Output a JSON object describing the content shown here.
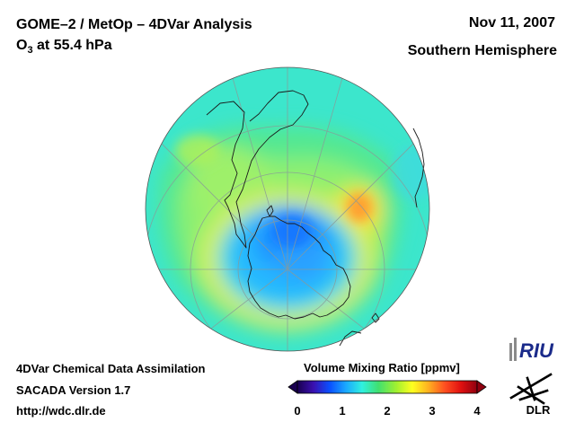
{
  "header": {
    "title": "GOME–2 / MetOp – 4DVar Analysis",
    "subtitle_prefix": "O",
    "subtitle_sub": "3",
    "subtitle_suffix": " at 55.4 hPa",
    "date": "Nov 11, 2007",
    "hemisphere": "Southern Hemisphere"
  },
  "footer": {
    "line1": "4DVar Chemical Data Assimilation",
    "line2": "SACADA Version 1.7",
    "line3": "http://wdc.dlr.de"
  },
  "colorbar": {
    "title": "Volume Mixing Ratio [ppmv]",
    "ticks": [
      "0",
      "1",
      "2",
      "3",
      "4"
    ],
    "range": [
      0,
      4
    ],
    "colors": [
      "#1a0050",
      "#3a10b0",
      "#0a50ff",
      "#1aa8ff",
      "#30f0e0",
      "#40e070",
      "#a0f030",
      "#ffff20",
      "#ffb020",
      "#ff5020",
      "#e01010",
      "#900010"
    ]
  },
  "map": {
    "projection": "polar-orthographic",
    "pole": "south"
  },
  "logos": {
    "riu": "RIU",
    "dlr": "DLR"
  }
}
